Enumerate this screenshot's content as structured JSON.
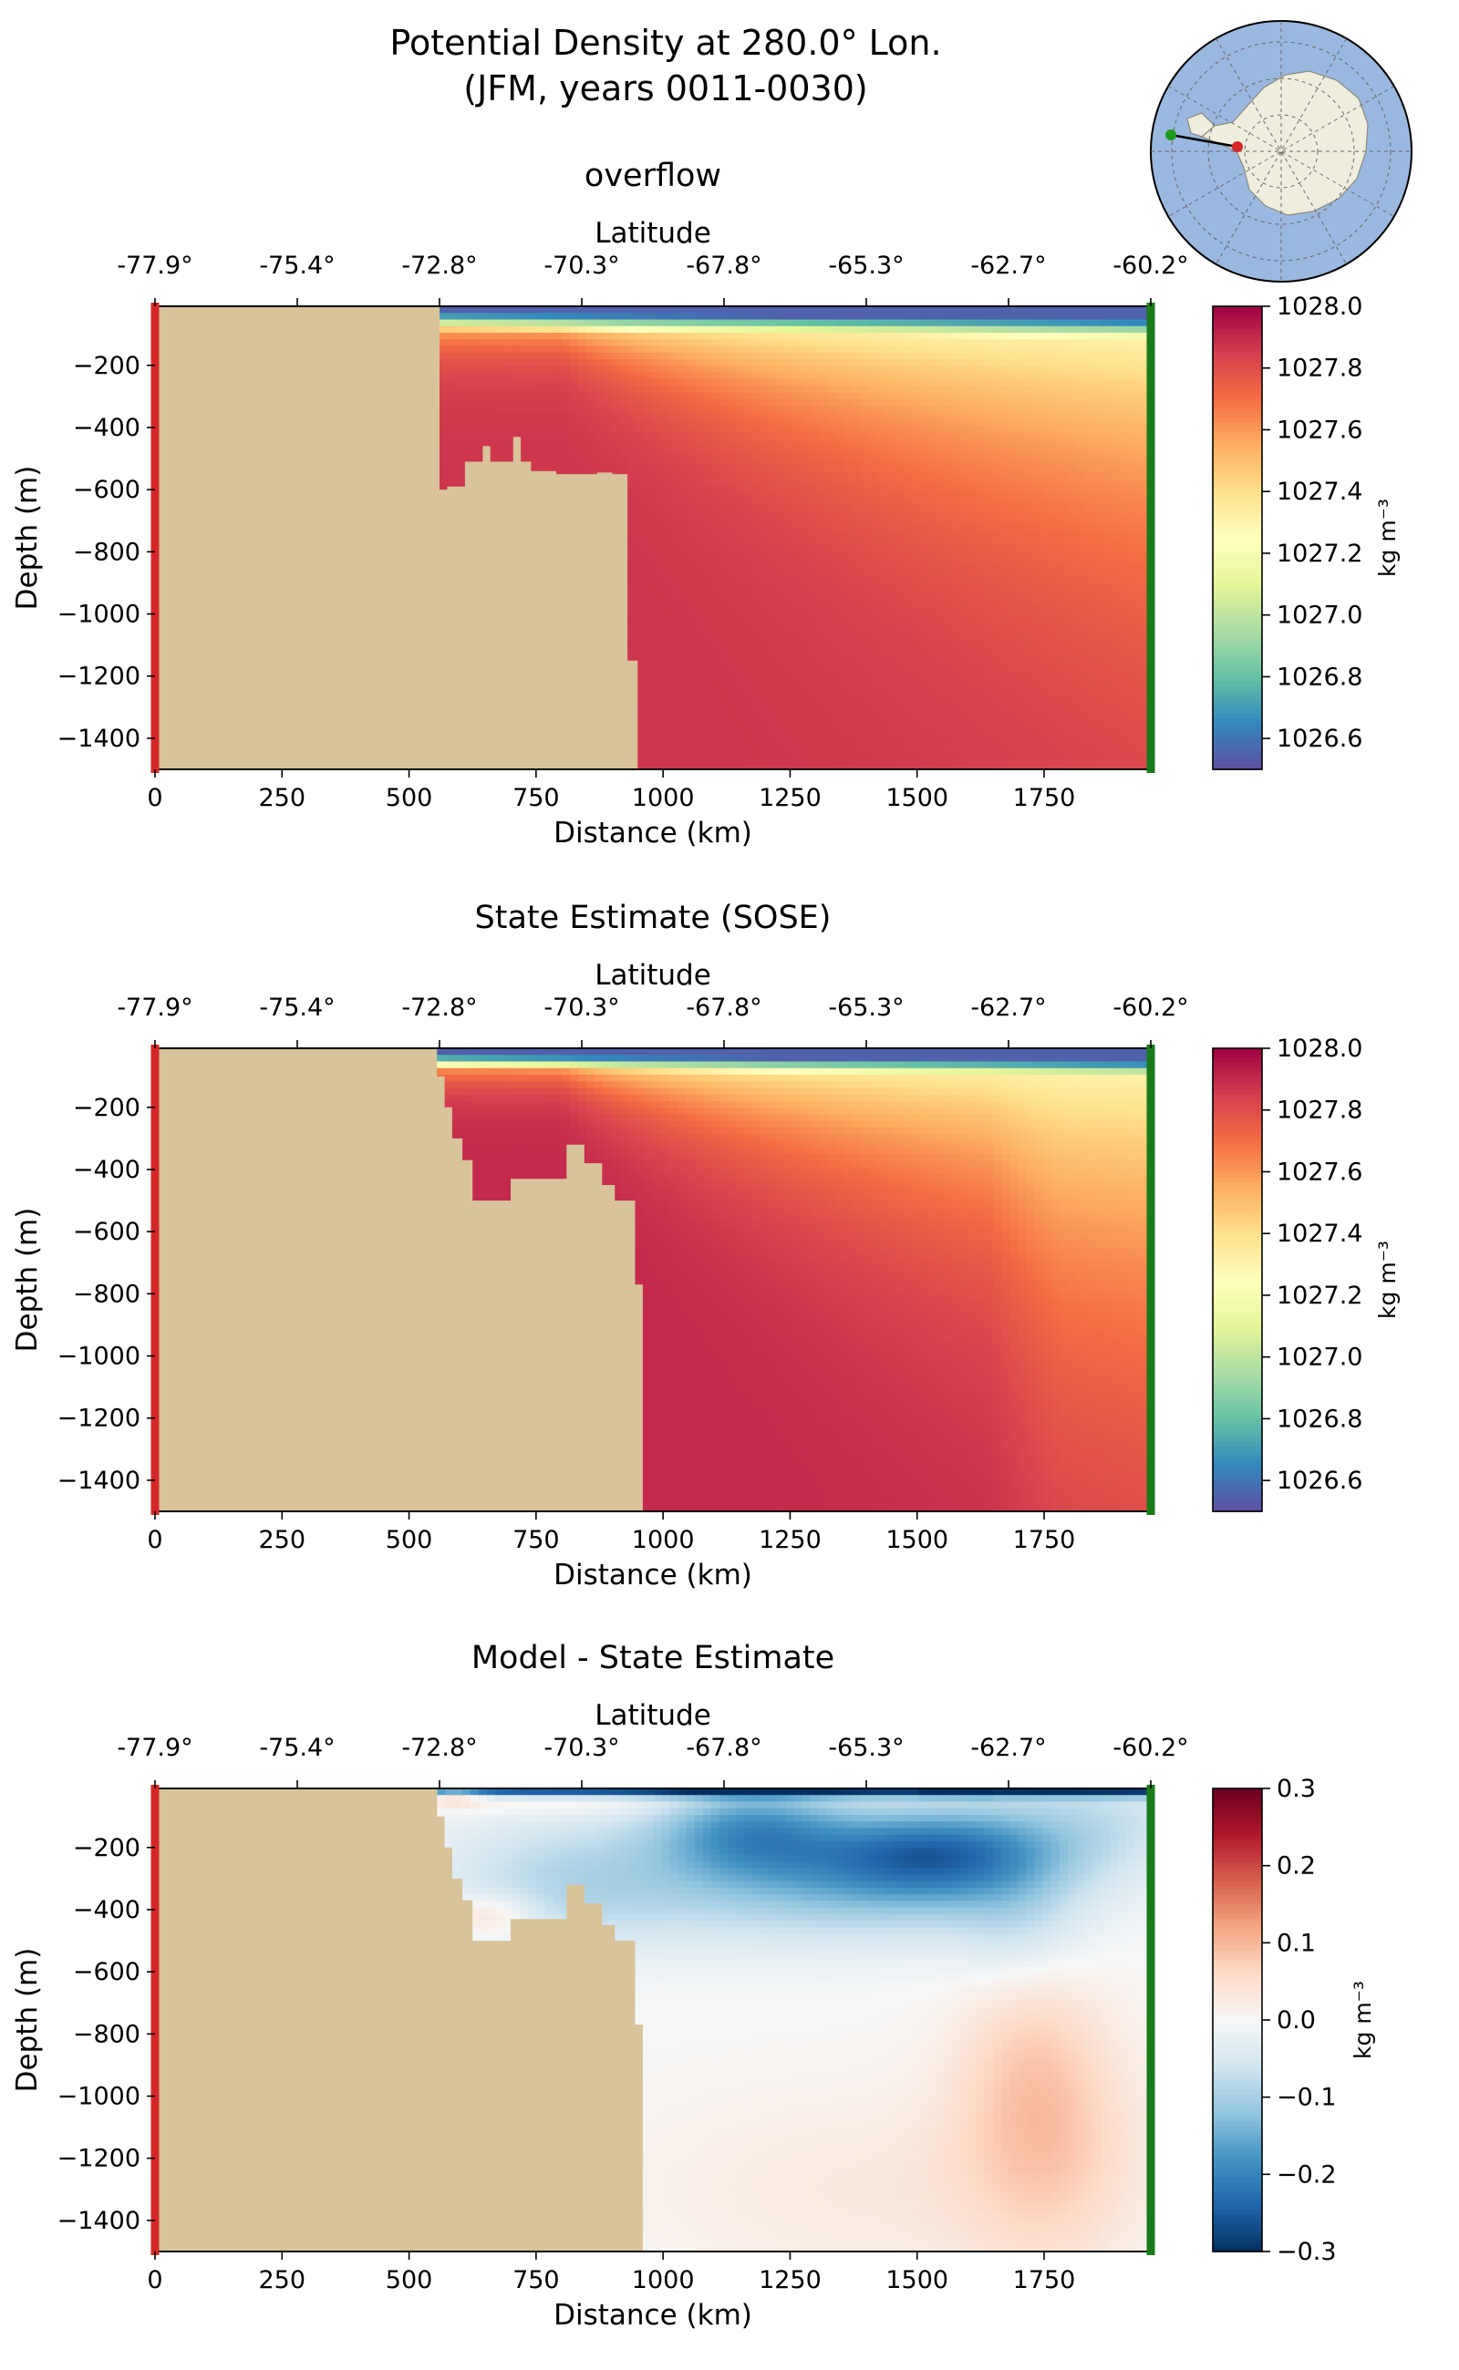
{
  "figure": {
    "title_line1": "Potential Density at 280.0° Lon.",
    "title_line2": "(JFM, years 0011-0030)"
  },
  "chart_data": [
    {
      "type": "heatmap",
      "title": "overflow",
      "xlabel": "Distance (km)",
      "ylabel": "Depth (m)",
      "top_xlabel": "Latitude",
      "colorbar_label": "kg m⁻³",
      "colormap": "Spectral_r",
      "x_ticks": [
        0,
        250,
        500,
        750,
        1000,
        1250,
        1500,
        1750
      ],
      "x_tick_labels": [
        "0",
        "250",
        "500",
        "750",
        "1000",
        "1250",
        "1500",
        "1750"
      ],
      "y_ticks": [
        -200,
        -400,
        -600,
        -800,
        -1000,
        -1200,
        -1400
      ],
      "y_tick_labels": [
        "−200",
        "−400",
        "−600",
        "−800",
        "−1000",
        "−1200",
        "−1400"
      ],
      "lat_tick_labels": [
        "-77.9°",
        "-75.4°",
        "-72.8°",
        "-70.3°",
        "-67.8°",
        "-65.3°",
        "-62.7°",
        "-60.2°"
      ],
      "colorbar_ticks": [
        1026.6,
        1026.8,
        1027.0,
        1027.2,
        1027.4,
        1027.6,
        1027.8,
        1028.0
      ],
      "colorbar_tick_labels": [
        "1026.6",
        "1026.8",
        "1027.0",
        "1027.2",
        "1027.4",
        "1027.6",
        "1027.8",
        "1028.0"
      ],
      "clim": [
        1026.5,
        1028.0
      ],
      "xlim": [
        0,
        1960
      ],
      "ylim": [
        -1500,
        -10
      ],
      "field": "overflow",
      "topography": [
        [
          0,
          -10
        ],
        [
          560,
          -10
        ],
        [
          560,
          -600
        ],
        [
          575,
          -600
        ],
        [
          575,
          -590
        ],
        [
          610,
          -590
        ],
        [
          610,
          -510
        ],
        [
          645,
          -510
        ],
        [
          645,
          -460
        ],
        [
          660,
          -460
        ],
        [
          660,
          -510
        ],
        [
          705,
          -510
        ],
        [
          705,
          -430
        ],
        [
          720,
          -430
        ],
        [
          720,
          -510
        ],
        [
          740,
          -510
        ],
        [
          740,
          -540
        ],
        [
          790,
          -540
        ],
        [
          790,
          -550
        ],
        [
          870,
          -550
        ],
        [
          870,
          -545
        ],
        [
          900,
          -545
        ],
        [
          900,
          -550
        ],
        [
          930,
          -550
        ],
        [
          930,
          -1150
        ],
        [
          950,
          -1150
        ],
        [
          950,
          -1500
        ],
        [
          0,
          -1500
        ]
      ]
    },
    {
      "type": "heatmap",
      "title": "State Estimate (SOSE)",
      "xlabel": "Distance (km)",
      "ylabel": "Depth (m)",
      "top_xlabel": "Latitude",
      "colorbar_label": "kg m⁻³",
      "colormap": "Spectral_r",
      "x_ticks": [
        0,
        250,
        500,
        750,
        1000,
        1250,
        1500,
        1750
      ],
      "x_tick_labels": [
        "0",
        "250",
        "500",
        "750",
        "1000",
        "1250",
        "1500",
        "1750"
      ],
      "y_ticks": [
        -200,
        -400,
        -600,
        -800,
        -1000,
        -1200,
        -1400
      ],
      "y_tick_labels": [
        "−200",
        "−400",
        "−600",
        "−800",
        "−1000",
        "−1200",
        "−1400"
      ],
      "lat_tick_labels": [
        "-77.9°",
        "-75.4°",
        "-72.8°",
        "-70.3°",
        "-67.8°",
        "-65.3°",
        "-62.7°",
        "-60.2°"
      ],
      "colorbar_ticks": [
        1026.6,
        1026.8,
        1027.0,
        1027.2,
        1027.4,
        1027.6,
        1027.8,
        1028.0
      ],
      "colorbar_tick_labels": [
        "1026.6",
        "1026.8",
        "1027.0",
        "1027.2",
        "1027.4",
        "1027.6",
        "1027.8",
        "1028.0"
      ],
      "clim": [
        1026.5,
        1028.0
      ],
      "xlim": [
        0,
        1960
      ],
      "ylim": [
        -1500,
        -10
      ],
      "field": "sose",
      "topography": [
        [
          0,
          -10
        ],
        [
          555,
          -10
        ],
        [
          555,
          -100
        ],
        [
          570,
          -100
        ],
        [
          570,
          -200
        ],
        [
          585,
          -200
        ],
        [
          585,
          -300
        ],
        [
          605,
          -300
        ],
        [
          605,
          -370
        ],
        [
          625,
          -370
        ],
        [
          625,
          -500
        ],
        [
          700,
          -500
        ],
        [
          700,
          -430
        ],
        [
          810,
          -430
        ],
        [
          810,
          -320
        ],
        [
          845,
          -320
        ],
        [
          845,
          -380
        ],
        [
          880,
          -380
        ],
        [
          880,
          -450
        ],
        [
          905,
          -450
        ],
        [
          905,
          -500
        ],
        [
          945,
          -500
        ],
        [
          945,
          -770
        ],
        [
          960,
          -770
        ],
        [
          960,
          -1500
        ],
        [
          0,
          -1500
        ]
      ]
    },
    {
      "type": "heatmap",
      "title": "Model - State Estimate",
      "xlabel": "Distance (km)",
      "ylabel": "Depth (m)",
      "top_xlabel": "Latitude",
      "colorbar_label": "kg m⁻³",
      "colormap": "RdBu_r",
      "x_ticks": [
        0,
        250,
        500,
        750,
        1000,
        1250,
        1500,
        1750
      ],
      "x_tick_labels": [
        "0",
        "250",
        "500",
        "750",
        "1000",
        "1250",
        "1500",
        "1750"
      ],
      "y_ticks": [
        -200,
        -400,
        -600,
        -800,
        -1000,
        -1200,
        -1400
      ],
      "y_tick_labels": [
        "−200",
        "−400",
        "−600",
        "−800",
        "−1000",
        "−1200",
        "−1400"
      ],
      "lat_tick_labels": [
        "-77.9°",
        "-75.4°",
        "-72.8°",
        "-70.3°",
        "-67.8°",
        "-65.3°",
        "-62.7°",
        "-60.2°"
      ],
      "colorbar_ticks": [
        -0.3,
        -0.2,
        -0.1,
        0.0,
        0.1,
        0.2,
        0.3
      ],
      "colorbar_tick_labels": [
        "−0.3",
        "−0.2",
        "−0.1",
        "0.0",
        "0.1",
        "0.2",
        "0.3"
      ],
      "clim": [
        -0.3,
        0.3
      ],
      "xlim": [
        0,
        1960
      ],
      "ylim": [
        -1500,
        -10
      ],
      "field": "diff",
      "topography": [
        [
          0,
          -10
        ],
        [
          555,
          -10
        ],
        [
          555,
          -100
        ],
        [
          570,
          -100
        ],
        [
          570,
          -200
        ],
        [
          585,
          -200
        ],
        [
          585,
          -300
        ],
        [
          605,
          -300
        ],
        [
          605,
          -370
        ],
        [
          625,
          -370
        ],
        [
          625,
          -500
        ],
        [
          700,
          -500
        ],
        [
          700,
          -430
        ],
        [
          810,
          -430
        ],
        [
          810,
          -320
        ],
        [
          845,
          -320
        ],
        [
          845,
          -380
        ],
        [
          880,
          -380
        ],
        [
          880,
          -450
        ],
        [
          905,
          -450
        ],
        [
          905,
          -500
        ],
        [
          945,
          -500
        ],
        [
          945,
          -770
        ],
        [
          960,
          -770
        ],
        [
          960,
          -1500
        ],
        [
          0,
          -1500
        ]
      ]
    }
  ],
  "colors": {
    "land": "#d8c39a",
    "section_start_marker": "#d62728",
    "section_end_marker": "#1a7a1a",
    "ocean_map": "#9bb8e0",
    "antarctica_map": "#efedde"
  }
}
